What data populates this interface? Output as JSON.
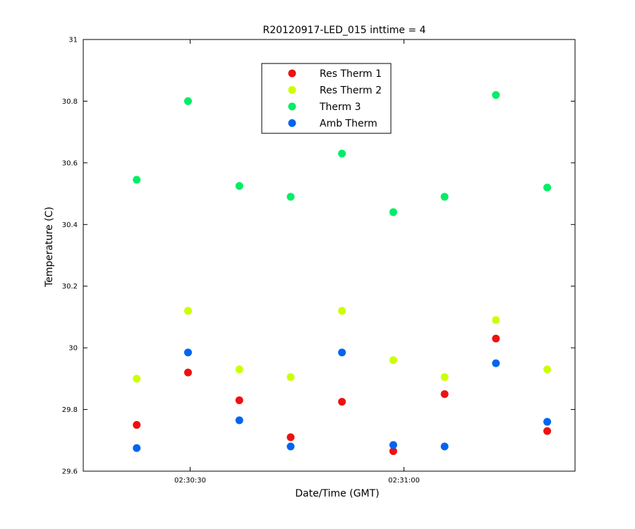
{
  "chart_data": {
    "type": "scatter",
    "title": "R20120917-LED_015 inttime = 4",
    "xlabel": "Date/Time (GMT)",
    "ylabel": "Temperature (C)",
    "ylim": [
      29.6,
      31.0
    ],
    "yticks": [
      29.6,
      29.8,
      30,
      30.2,
      30.4,
      30.6,
      30.8,
      31
    ],
    "ytick_labels": [
      "29.6",
      "29.8",
      "30",
      "30.2",
      "30.4",
      "30.6",
      "30.8",
      "31"
    ],
    "xlim": [
      "02:30:15",
      "02:31:24"
    ],
    "xticks": [
      "02:30:30",
      "02:31:00"
    ],
    "xtick_labels": [
      "02:30:30",
      "02:31:00"
    ],
    "grid": false,
    "legend_position": "top-center",
    "x": [
      "02:30:22.5",
      "02:30:29.7",
      "02:30:36.9",
      "02:30:44.1",
      "02:30:51.3",
      "02:30:58.5",
      "02:31:05.7",
      "02:31:12.9",
      "02:31:20.1"
    ],
    "series": [
      {
        "name": "Res Therm 1",
        "color": "#ee1111",
        "values": [
          29.75,
          29.92,
          29.83,
          29.71,
          29.825,
          29.665,
          29.85,
          30.03,
          29.73
        ]
      },
      {
        "name": "Res Therm 2",
        "color": "#ccff00",
        "values": [
          29.9,
          30.12,
          29.93,
          29.905,
          30.12,
          29.96,
          29.905,
          30.09,
          29.93
        ]
      },
      {
        "name": "Therm 3",
        "color": "#00ee66",
        "values": [
          30.545,
          30.8,
          30.525,
          30.49,
          30.63,
          30.44,
          30.49,
          30.82,
          30.52
        ]
      },
      {
        "name": "Amb Therm",
        "color": "#0066ee",
        "values": [
          29.675,
          29.985,
          29.765,
          29.68,
          29.985,
          29.685,
          29.68,
          29.95,
          29.76
        ]
      }
    ]
  }
}
